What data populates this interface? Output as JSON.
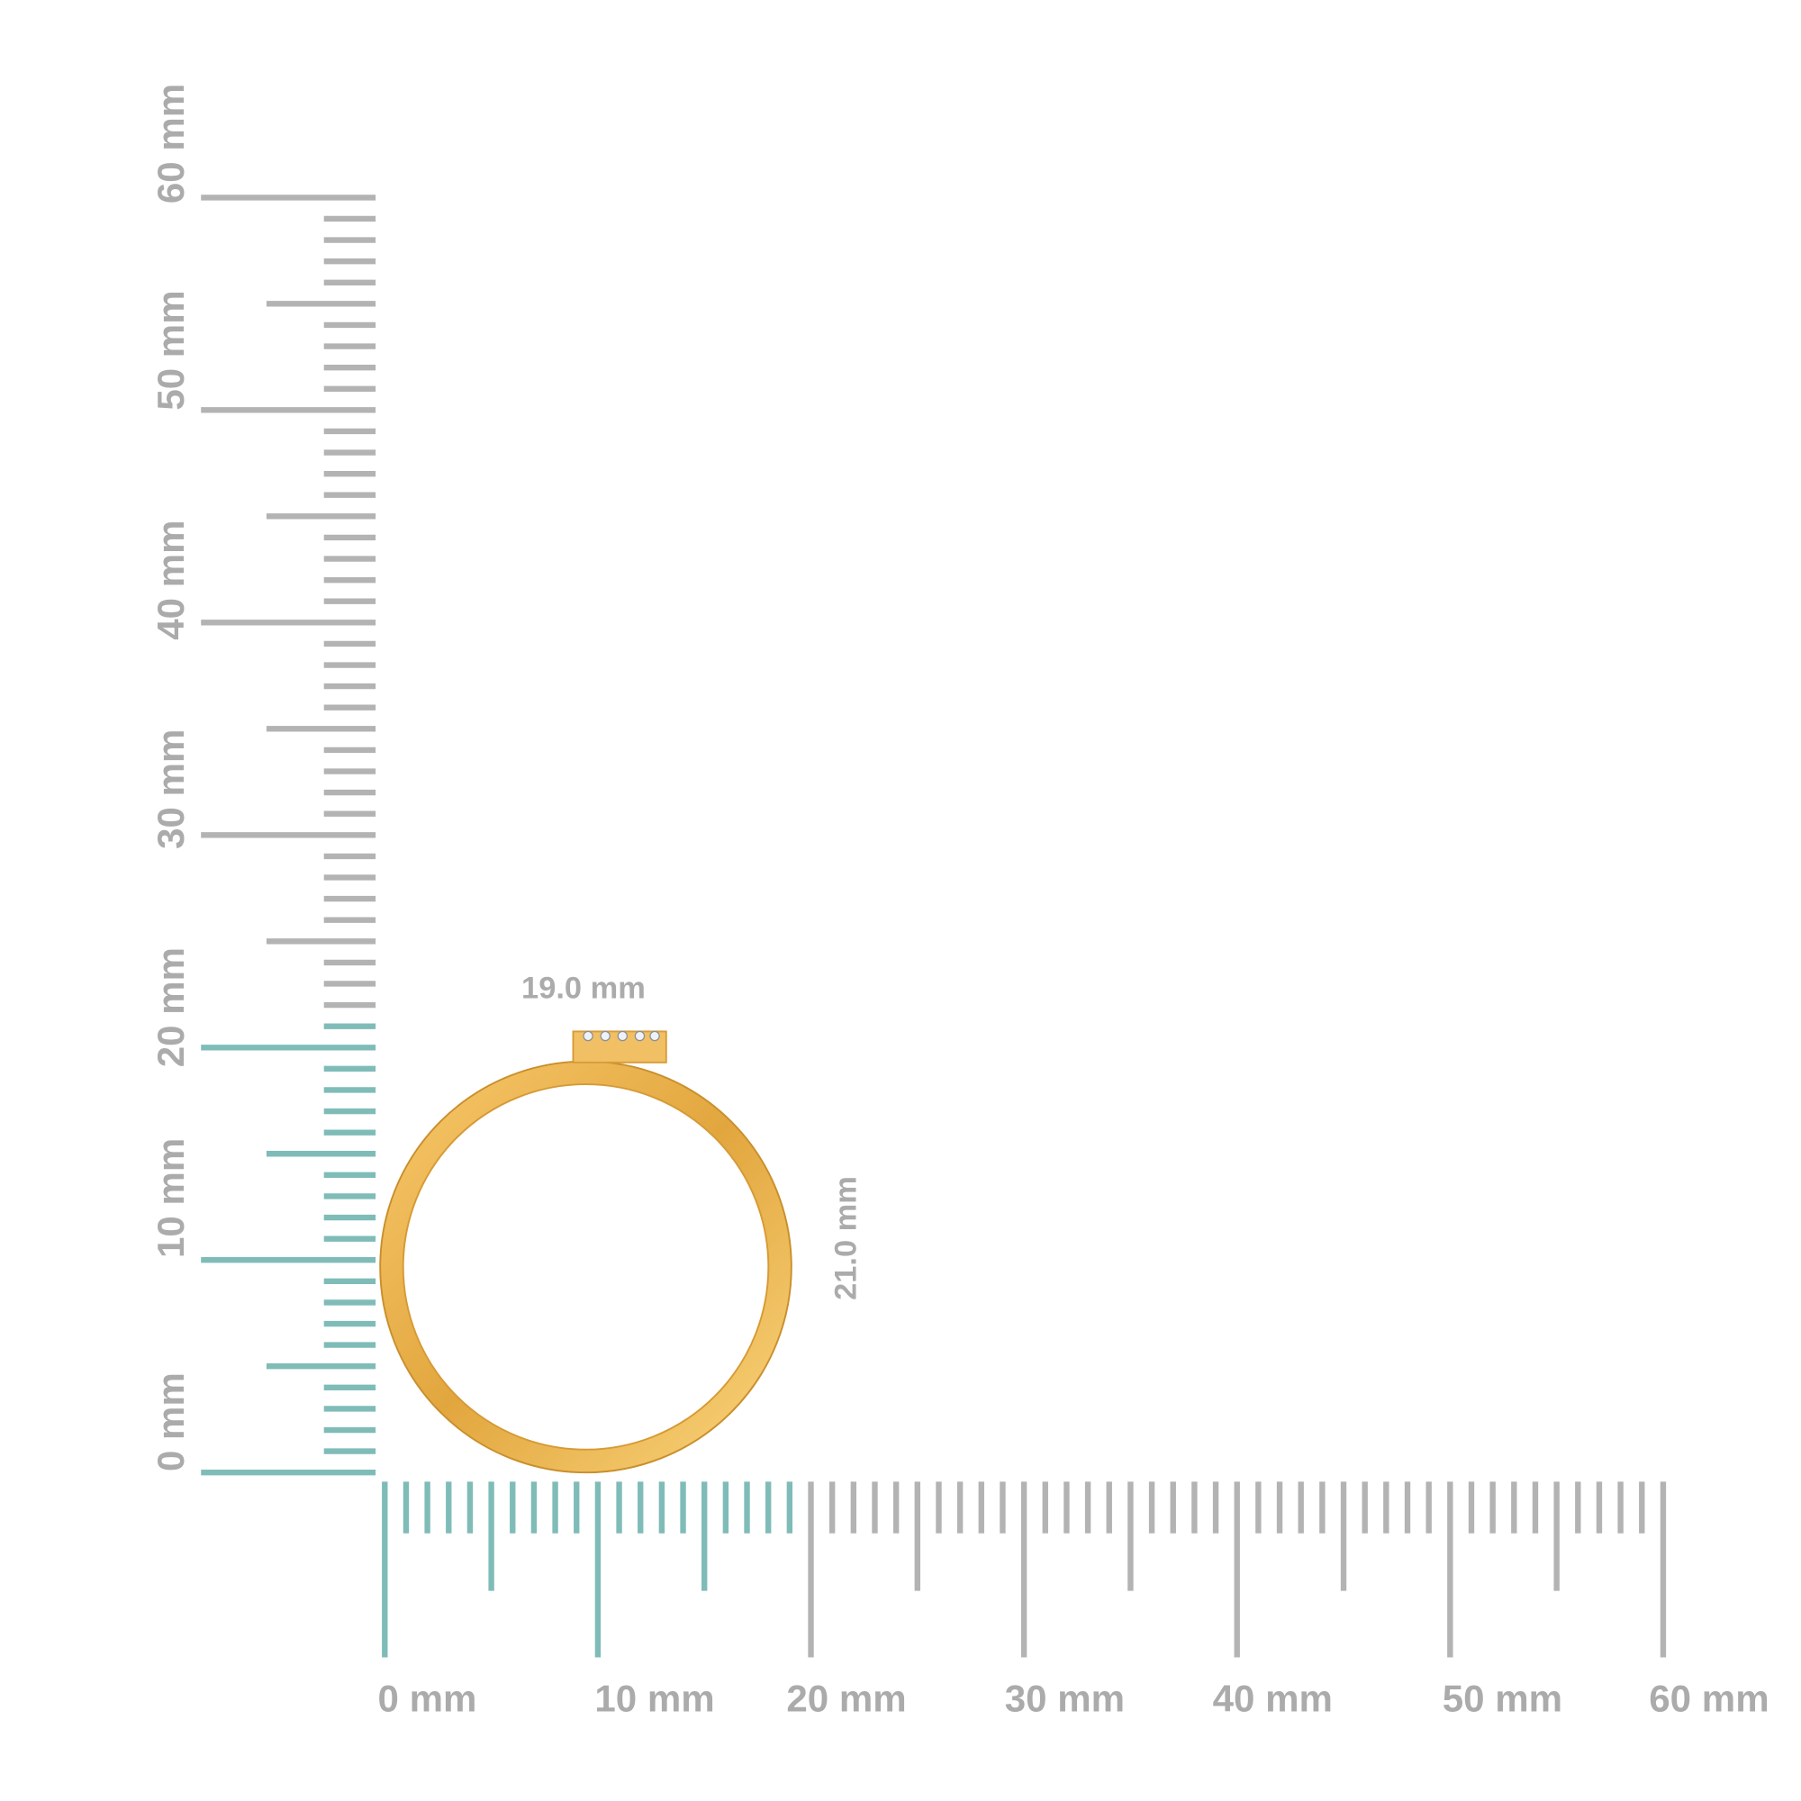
{
  "x_ruler": {
    "labels": [
      "0 mm",
      "10 mm",
      "20 mm",
      "30 mm",
      "40 mm",
      "50 mm",
      "60 mm"
    ]
  },
  "y_ruler": {
    "labels": [
      "0 mm",
      "10 mm",
      "20 mm",
      "30 mm",
      "40 mm",
      "50 mm",
      "60 mm"
    ]
  },
  "dimensions": {
    "width": "19.0 mm",
    "height": "21.0 mm"
  }
}
